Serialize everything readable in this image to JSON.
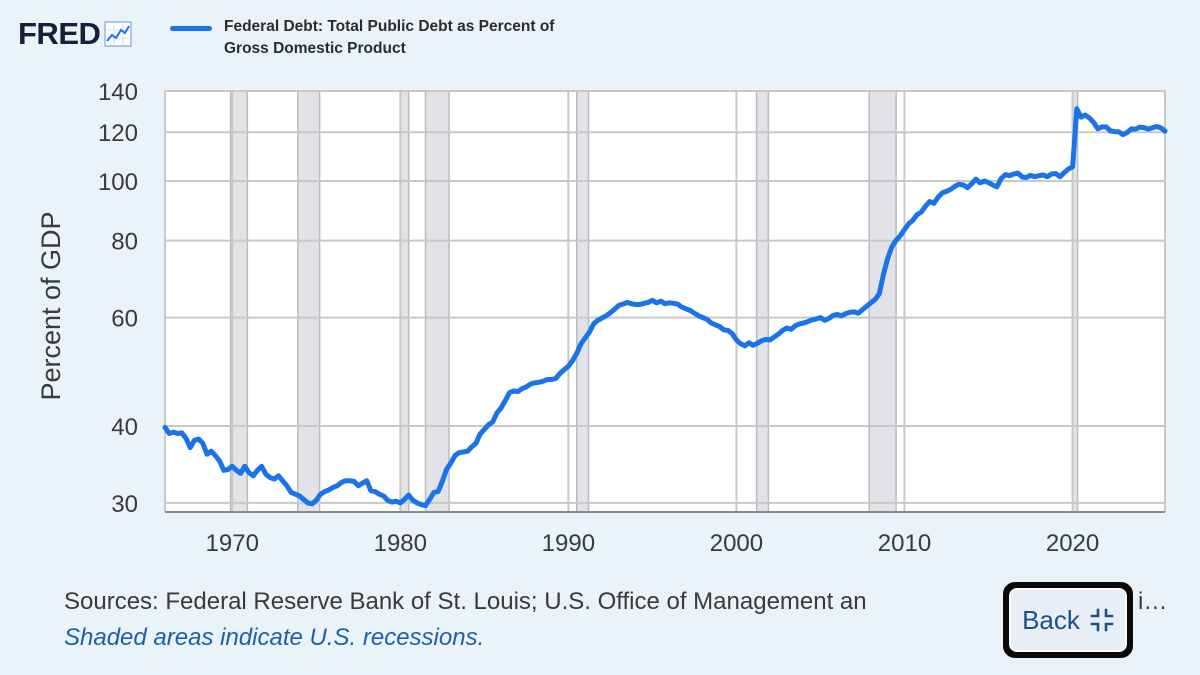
{
  "header": {
    "logo_text": "FRED",
    "logo_icon": "trend-line-icon",
    "legend_label_line1": "Federal Debt: Total Public Debt as Percent of",
    "legend_label_line2": "Gross Domestic Product",
    "series_color": "#1a73e8"
  },
  "footer": {
    "sources": "Sources: Federal Reserve Bank of St. Louis; U.S. Office of Management an",
    "sources_tail": "i…",
    "note": "Shaded areas indicate U.S. recessions."
  },
  "back_button": {
    "label": "Back",
    "icon": "collapse-icon"
  },
  "chart_data": {
    "type": "line",
    "title": "",
    "xlabel": "",
    "ylabel": "Percent of GDP",
    "y_scale": "log",
    "ylim": [
      29,
      140
    ],
    "xlim": [
      1966.0,
      2025.5
    ],
    "y_ticks": [
      30,
      40,
      60,
      80,
      100,
      120,
      140
    ],
    "x_ticks": [
      1970,
      1980,
      1990,
      2000,
      2010,
      2020
    ],
    "grid": true,
    "recessions": [
      [
        1969.9,
        1970.9
      ],
      [
        1973.9,
        1975.2
      ],
      [
        1980.0,
        1980.5
      ],
      [
        1981.5,
        1982.9
      ],
      [
        1990.5,
        1991.2
      ],
      [
        2001.2,
        2001.9
      ],
      [
        2007.9,
        2009.5
      ],
      [
        2020.0,
        2020.3
      ]
    ],
    "series": [
      {
        "name": "Federal Debt: Total Public Debt as Percent of Gross Domestic Product",
        "color": "#1a73e8",
        "points": [
          [
            1966.0,
            39.8
          ],
          [
            1966.25,
            38.9
          ],
          [
            1966.5,
            39.1
          ],
          [
            1966.75,
            38.9
          ],
          [
            1967.0,
            39.0
          ],
          [
            1967.25,
            38.2
          ],
          [
            1967.5,
            36.9
          ],
          [
            1967.75,
            37.9
          ],
          [
            1968.0,
            38.1
          ],
          [
            1968.25,
            37.5
          ],
          [
            1968.5,
            36.0
          ],
          [
            1968.75,
            36.4
          ],
          [
            1969.0,
            35.8
          ],
          [
            1969.25,
            35.1
          ],
          [
            1969.5,
            33.9
          ],
          [
            1969.75,
            34.0
          ],
          [
            1970.0,
            34.4
          ],
          [
            1970.25,
            33.9
          ],
          [
            1970.5,
            33.5
          ],
          [
            1970.75,
            34.4
          ],
          [
            1971.0,
            33.6
          ],
          [
            1971.25,
            33.2
          ],
          [
            1971.5,
            33.9
          ],
          [
            1971.75,
            34.4
          ],
          [
            1972.0,
            33.4
          ],
          [
            1972.25,
            33.0
          ],
          [
            1972.5,
            32.8
          ],
          [
            1972.75,
            33.2
          ],
          [
            1973.0,
            32.6
          ],
          [
            1973.25,
            32.0
          ],
          [
            1973.5,
            31.2
          ],
          [
            1973.75,
            31.0
          ],
          [
            1974.0,
            30.8
          ],
          [
            1974.25,
            30.4
          ],
          [
            1974.5,
            30.0
          ],
          [
            1974.75,
            29.9
          ],
          [
            1975.0,
            30.3
          ],
          [
            1975.25,
            31.0
          ],
          [
            1975.5,
            31.3
          ],
          [
            1975.75,
            31.5
          ],
          [
            1976.0,
            31.8
          ],
          [
            1976.25,
            32.0
          ],
          [
            1976.5,
            32.4
          ],
          [
            1976.75,
            32.6
          ],
          [
            1977.0,
            32.6
          ],
          [
            1977.25,
            32.5
          ],
          [
            1977.5,
            32.0
          ],
          [
            1977.75,
            32.3
          ],
          [
            1978.0,
            32.6
          ],
          [
            1978.25,
            31.4
          ],
          [
            1978.5,
            31.3
          ],
          [
            1978.75,
            31.0
          ],
          [
            1979.0,
            30.8
          ],
          [
            1979.25,
            30.3
          ],
          [
            1979.5,
            30.1
          ],
          [
            1979.75,
            30.2
          ],
          [
            1980.0,
            30.0
          ],
          [
            1980.25,
            30.4
          ],
          [
            1980.5,
            30.9
          ],
          [
            1980.75,
            30.3
          ],
          [
            1981.0,
            30.0
          ],
          [
            1981.25,
            29.8
          ],
          [
            1981.5,
            29.7
          ],
          [
            1981.75,
            30.4
          ],
          [
            1982.0,
            31.2
          ],
          [
            1982.25,
            31.3
          ],
          [
            1982.5,
            32.5
          ],
          [
            1982.75,
            34.0
          ],
          [
            1983.0,
            34.8
          ],
          [
            1983.25,
            35.8
          ],
          [
            1983.5,
            36.2
          ],
          [
            1983.75,
            36.3
          ],
          [
            1984.0,
            36.4
          ],
          [
            1984.25,
            37.0
          ],
          [
            1984.5,
            37.5
          ],
          [
            1984.75,
            38.8
          ],
          [
            1985.0,
            39.5
          ],
          [
            1985.25,
            40.2
          ],
          [
            1985.5,
            40.6
          ],
          [
            1985.75,
            42.0
          ],
          [
            1986.0,
            42.8
          ],
          [
            1986.25,
            44.0
          ],
          [
            1986.5,
            45.3
          ],
          [
            1986.75,
            45.6
          ],
          [
            1987.0,
            45.5
          ],
          [
            1987.25,
            46.0
          ],
          [
            1987.5,
            46.3
          ],
          [
            1987.75,
            46.8
          ],
          [
            1988.0,
            47.0
          ],
          [
            1988.25,
            47.1
          ],
          [
            1988.5,
            47.3
          ],
          [
            1988.75,
            47.6
          ],
          [
            1989.0,
            47.6
          ],
          [
            1989.25,
            47.8
          ],
          [
            1989.5,
            48.7
          ],
          [
            1989.75,
            49.4
          ],
          [
            1990.0,
            50.0
          ],
          [
            1990.25,
            51.1
          ],
          [
            1990.5,
            52.5
          ],
          [
            1990.75,
            54.4
          ],
          [
            1991.0,
            55.6
          ],
          [
            1991.25,
            56.8
          ],
          [
            1991.5,
            58.6
          ],
          [
            1991.75,
            59.4
          ],
          [
            1992.0,
            59.9
          ],
          [
            1992.25,
            60.4
          ],
          [
            1992.5,
            61.1
          ],
          [
            1992.75,
            61.9
          ],
          [
            1993.0,
            62.8
          ],
          [
            1993.25,
            63.1
          ],
          [
            1993.5,
            63.5
          ],
          [
            1993.75,
            63.2
          ],
          [
            1994.0,
            63.0
          ],
          [
            1994.25,
            63.0
          ],
          [
            1994.5,
            63.3
          ],
          [
            1994.75,
            63.5
          ],
          [
            1995.0,
            64.0
          ],
          [
            1995.25,
            63.4
          ],
          [
            1995.5,
            63.8
          ],
          [
            1995.75,
            63.2
          ],
          [
            1996.0,
            63.4
          ],
          [
            1996.25,
            63.3
          ],
          [
            1996.5,
            63.1
          ],
          [
            1996.75,
            62.4
          ],
          [
            1997.0,
            62.0
          ],
          [
            1997.25,
            61.6
          ],
          [
            1997.5,
            61.0
          ],
          [
            1997.75,
            60.4
          ],
          [
            1998.0,
            60.0
          ],
          [
            1998.25,
            59.6
          ],
          [
            1998.5,
            58.8
          ],
          [
            1998.75,
            58.4
          ],
          [
            1999.0,
            58.0
          ],
          [
            1999.25,
            57.3
          ],
          [
            1999.5,
            57.2
          ],
          [
            1999.75,
            56.5
          ],
          [
            2000.0,
            55.2
          ],
          [
            2000.25,
            54.4
          ],
          [
            2000.5,
            54.0
          ],
          [
            2000.75,
            54.6
          ],
          [
            2001.0,
            54.1
          ],
          [
            2001.25,
            54.5
          ],
          [
            2001.5,
            55.0
          ],
          [
            2001.75,
            55.3
          ],
          [
            2002.0,
            55.2
          ],
          [
            2002.25,
            55.8
          ],
          [
            2002.5,
            56.4
          ],
          [
            2002.75,
            57.2
          ],
          [
            2003.0,
            57.7
          ],
          [
            2003.25,
            57.4
          ],
          [
            2003.5,
            58.2
          ],
          [
            2003.75,
            58.6
          ],
          [
            2004.0,
            58.8
          ],
          [
            2004.25,
            59.1
          ],
          [
            2004.5,
            59.5
          ],
          [
            2004.75,
            59.7
          ],
          [
            2005.0,
            60.0
          ],
          [
            2005.25,
            59.4
          ],
          [
            2005.5,
            59.8
          ],
          [
            2005.75,
            60.5
          ],
          [
            2006.0,
            60.7
          ],
          [
            2006.25,
            60.4
          ],
          [
            2006.5,
            60.9
          ],
          [
            2006.75,
            61.2
          ],
          [
            2007.0,
            61.3
          ],
          [
            2007.25,
            61.0
          ],
          [
            2007.5,
            61.8
          ],
          [
            2007.75,
            62.6
          ],
          [
            2008.0,
            63.4
          ],
          [
            2008.25,
            64.2
          ],
          [
            2008.5,
            65.6
          ],
          [
            2008.75,
            70.6
          ],
          [
            2009.0,
            74.9
          ],
          [
            2009.25,
            78.2
          ],
          [
            2009.5,
            80.1
          ],
          [
            2009.75,
            81.5
          ],
          [
            2010.0,
            83.4
          ],
          [
            2010.25,
            85.2
          ],
          [
            2010.5,
            86.4
          ],
          [
            2010.75,
            88.2
          ],
          [
            2011.0,
            89.0
          ],
          [
            2011.25,
            91.0
          ],
          [
            2011.5,
            92.6
          ],
          [
            2011.75,
            92.0
          ],
          [
            2012.0,
            94.1
          ],
          [
            2012.25,
            95.6
          ],
          [
            2012.5,
            96.2
          ],
          [
            2012.75,
            96.9
          ],
          [
            2013.0,
            98.0
          ],
          [
            2013.25,
            98.8
          ],
          [
            2013.5,
            98.5
          ],
          [
            2013.75,
            97.5
          ],
          [
            2014.0,
            99.0
          ],
          [
            2014.25,
            100.7
          ],
          [
            2014.5,
            99.3
          ],
          [
            2014.75,
            100.0
          ],
          [
            2015.0,
            99.4
          ],
          [
            2015.25,
            98.5
          ],
          [
            2015.5,
            97.8
          ],
          [
            2015.75,
            100.9
          ],
          [
            2016.0,
            102.4
          ],
          [
            2016.25,
            102.0
          ],
          [
            2016.5,
            102.6
          ],
          [
            2016.75,
            103.0
          ],
          [
            2017.0,
            101.5
          ],
          [
            2017.25,
            101.3
          ],
          [
            2017.5,
            102.1
          ],
          [
            2017.75,
            101.6
          ],
          [
            2018.0,
            102.0
          ],
          [
            2018.25,
            102.3
          ],
          [
            2018.5,
            101.6
          ],
          [
            2018.75,
            102.7
          ],
          [
            2019.0,
            102.8
          ],
          [
            2019.25,
            101.6
          ],
          [
            2019.5,
            103.2
          ],
          [
            2019.75,
            104.6
          ],
          [
            2020.0,
            105.4
          ],
          [
            2020.25,
            131.0
          ],
          [
            2020.5,
            127.0
          ],
          [
            2020.75,
            128.0
          ],
          [
            2021.0,
            126.6
          ],
          [
            2021.25,
            124.5
          ],
          [
            2021.5,
            121.6
          ],
          [
            2021.75,
            122.4
          ],
          [
            2022.0,
            122.4
          ],
          [
            2022.25,
            120.6
          ],
          [
            2022.5,
            120.3
          ],
          [
            2022.75,
            120.2
          ],
          [
            2023.0,
            118.9
          ],
          [
            2023.25,
            119.9
          ],
          [
            2023.5,
            121.5
          ],
          [
            2023.75,
            121.4
          ],
          [
            2024.0,
            122.3
          ],
          [
            2024.25,
            122.1
          ],
          [
            2024.5,
            121.4
          ],
          [
            2024.75,
            122.0
          ],
          [
            2025.0,
            122.6
          ],
          [
            2025.25,
            122.0
          ],
          [
            2025.5,
            120.5
          ]
        ]
      }
    ]
  }
}
